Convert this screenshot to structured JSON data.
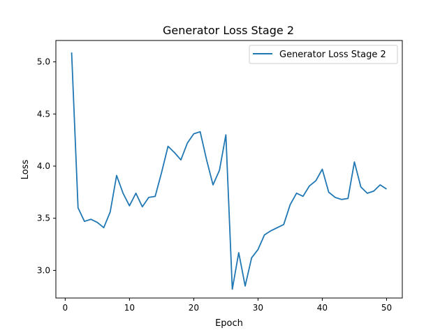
{
  "chart_data": {
    "type": "line",
    "title": "Generator Loss Stage 2",
    "xlabel": "Epoch",
    "ylabel": "Loss",
    "xlim": [
      -1.45,
      52.45
    ],
    "ylim": [
      2.735,
      5.205
    ],
    "xticks": [
      0,
      10,
      20,
      30,
      40,
      50
    ],
    "yticks": [
      3.0,
      3.5,
      4.0,
      4.5,
      5.0
    ],
    "xtick_labels": [
      "0",
      "10",
      "20",
      "30",
      "40",
      "50"
    ],
    "ytick_labels": [
      "3.0",
      "3.5",
      "4.0",
      "4.5",
      "5.0"
    ],
    "legend_position": "upper right",
    "grid": false,
    "series": [
      {
        "name": "Generator Loss Stage 2",
        "color": "#1f77b4",
        "x": [
          1,
          2,
          3,
          4,
          5,
          6,
          7,
          8,
          9,
          10,
          11,
          12,
          13,
          14,
          15,
          16,
          17,
          18,
          19,
          20,
          21,
          22,
          23,
          24,
          25,
          26,
          27,
          28,
          29,
          30,
          31,
          32,
          33,
          34,
          35,
          36,
          37,
          38,
          39,
          40,
          41,
          42,
          43,
          44,
          45,
          46,
          47,
          48,
          49,
          50
        ],
        "values": [
          5.09,
          3.6,
          3.47,
          3.49,
          3.46,
          3.41,
          3.56,
          3.91,
          3.74,
          3.62,
          3.74,
          3.61,
          3.7,
          3.71,
          3.94,
          4.19,
          4.13,
          4.06,
          4.22,
          4.31,
          4.33,
          4.06,
          3.82,
          3.96,
          4.3,
          2.82,
          3.17,
          2.85,
          3.12,
          3.2,
          3.34,
          3.38,
          3.41,
          3.44,
          3.63,
          3.74,
          3.71,
          3.81,
          3.86,
          3.97,
          3.75,
          3.7,
          3.68,
          3.69,
          4.04,
          3.8,
          3.74,
          3.76,
          3.82,
          3.78
        ]
      }
    ]
  }
}
